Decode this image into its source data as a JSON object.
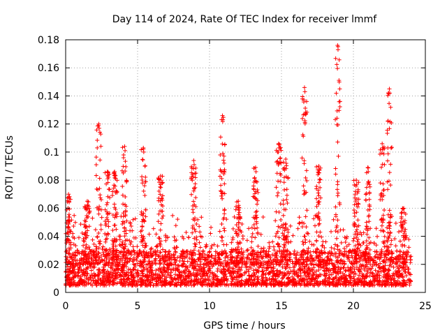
{
  "chart_data": {
    "type": "scatter",
    "title": "Day 114 of 2024, Rate Of TEC Index for receiver lmmf",
    "xlabel": "GPS time / hours",
    "ylabel": "ROTI / TECUs",
    "xlim": [
      0,
      25
    ],
    "ylim": [
      0,
      0.18
    ],
    "xticks": [
      0,
      5,
      10,
      15,
      20,
      25
    ],
    "xtick_labels": [
      "0",
      "5",
      "10",
      "15",
      "20",
      "25"
    ],
    "yticks": [
      0,
      0.02,
      0.04,
      0.06,
      0.08,
      0.1,
      0.12,
      0.14,
      0.16,
      0.18
    ],
    "ytick_labels": [
      "0",
      "0.02",
      "0.04",
      "0.06",
      "0.08",
      "0.1",
      "0.12",
      "0.14",
      "0.16",
      "0.18"
    ],
    "grid": true,
    "marker": "+",
    "color": "#ff0000",
    "data_x_range": [
      0,
      24
    ],
    "baseline_band": [
      0.005,
      0.03
    ],
    "peaks": [
      {
        "x": 0.2,
        "y": 0.07
      },
      {
        "x": 1.5,
        "y": 0.065
      },
      {
        "x": 2.3,
        "y": 0.12
      },
      {
        "x": 2.9,
        "y": 0.086
      },
      {
        "x": 3.4,
        "y": 0.086
      },
      {
        "x": 4.1,
        "y": 0.104
      },
      {
        "x": 5.4,
        "y": 0.103
      },
      {
        "x": 6.6,
        "y": 0.083
      },
      {
        "x": 8.9,
        "y": 0.094
      },
      {
        "x": 10.9,
        "y": 0.126
      },
      {
        "x": 12.0,
        "y": 0.065
      },
      {
        "x": 13.2,
        "y": 0.089
      },
      {
        "x": 14.8,
        "y": 0.106
      },
      {
        "x": 15.3,
        "y": 0.095
      },
      {
        "x": 16.6,
        "y": 0.146
      },
      {
        "x": 17.6,
        "y": 0.09
      },
      {
        "x": 18.9,
        "y": 0.176
      },
      {
        "x": 20.2,
        "y": 0.08
      },
      {
        "x": 21.0,
        "y": 0.089
      },
      {
        "x": 22.0,
        "y": 0.106
      },
      {
        "x": 22.5,
        "y": 0.145
      },
      {
        "x": 23.5,
        "y": 0.06
      }
    ]
  }
}
